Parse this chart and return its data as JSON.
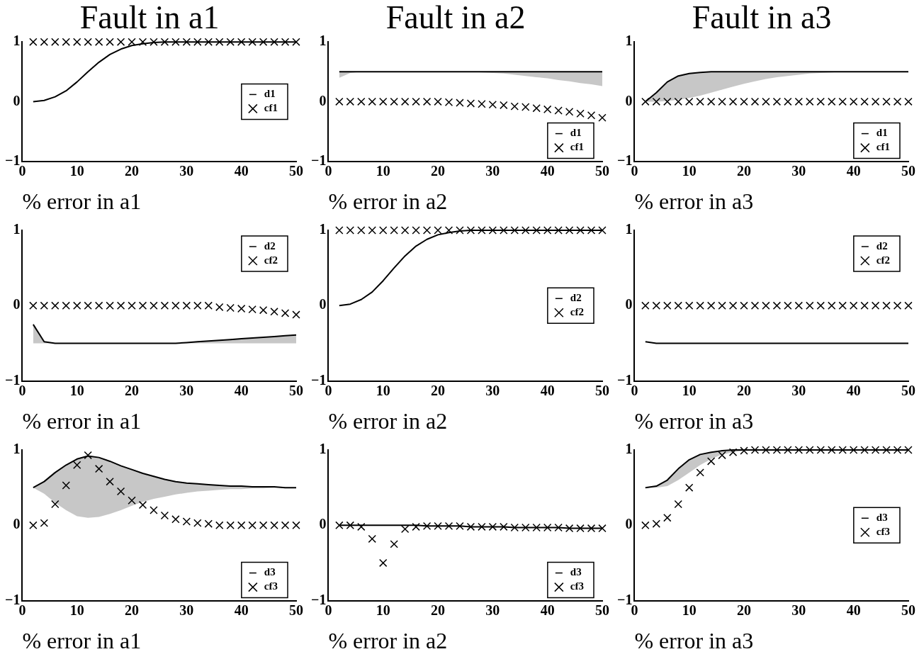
{
  "chart_data": [
    {
      "type": "line",
      "title": "Fault in a1",
      "xlabel": "% error in a1",
      "x": [
        2,
        4,
        6,
        8,
        10,
        12,
        14,
        16,
        18,
        20,
        22,
        24,
        26,
        28,
        30,
        32,
        34,
        36,
        38,
        40,
        42,
        44,
        46,
        48,
        50
      ],
      "xlim": [
        0,
        50
      ],
      "xticks": [
        0,
        10,
        20,
        30,
        40,
        50
      ],
      "ylim": [
        -1,
        1
      ],
      "yticks": [
        -1,
        0,
        1
      ],
      "legend": "right",
      "series": [
        {
          "name": "d1",
          "type": "line",
          "color": "#000000",
          "values": [
            0,
            0.02,
            0.08,
            0.18,
            0.33,
            0.5,
            0.66,
            0.79,
            0.88,
            0.94,
            0.97,
            0.99,
            1,
            1,
            1,
            1,
            1,
            1,
            1,
            1,
            1,
            1,
            1,
            1,
            1
          ]
        },
        {
          "name": "cf1",
          "type": "scatter",
          "marker": "cross",
          "color": "#000000",
          "values": [
            1,
            1,
            1,
            1,
            1,
            1,
            1,
            1,
            1,
            1,
            1,
            1,
            1,
            1,
            1,
            1,
            1,
            1,
            1,
            1,
            1,
            1,
            1,
            1,
            1
          ]
        }
      ]
    },
    {
      "type": "line",
      "title": "Fault in a2",
      "xlabel": "% error in a2",
      "x": [
        2,
        4,
        6,
        8,
        10,
        12,
        14,
        16,
        18,
        20,
        22,
        24,
        26,
        28,
        30,
        32,
        34,
        36,
        38,
        40,
        42,
        44,
        46,
        48,
        50
      ],
      "xlim": [
        0,
        50
      ],
      "xticks": [
        0,
        10,
        20,
        30,
        40,
        50
      ],
      "ylim": [
        -1,
        1
      ],
      "yticks": [
        -1,
        0,
        1
      ],
      "legend": "bottom right",
      "series": [
        {
          "name": "d1",
          "type": "line",
          "color": "#000000",
          "values": [
            0.5,
            0.5,
            0.5,
            0.5,
            0.5,
            0.5,
            0.5,
            0.5,
            0.5,
            0.5,
            0.5,
            0.5,
            0.5,
            0.5,
            0.5,
            0.5,
            0.5,
            0.5,
            0.5,
            0.5,
            0.5,
            0.5,
            0.5,
            0.5,
            0.5
          ],
          "lower": [
            0.4,
            0.48,
            0.5,
            0.5,
            0.5,
            0.5,
            0.5,
            0.5,
            0.5,
            0.5,
            0.5,
            0.5,
            0.5,
            0.49,
            0.48,
            0.47,
            0.45,
            0.43,
            0.41,
            0.39,
            0.36,
            0.34,
            0.31,
            0.29,
            0.26
          ],
          "upper": [
            0.5,
            0.5,
            0.5,
            0.5,
            0.5,
            0.5,
            0.5,
            0.5,
            0.5,
            0.5,
            0.5,
            0.5,
            0.5,
            0.5,
            0.5,
            0.5,
            0.5,
            0.5,
            0.5,
            0.5,
            0.5,
            0.5,
            0.5,
            0.5,
            0.5
          ]
        },
        {
          "name": "cf1",
          "type": "scatter",
          "marker": "cross",
          "color": "#000000",
          "values": [
            0,
            0,
            0,
            0,
            0,
            0,
            0,
            0,
            0,
            0,
            -0.01,
            -0.02,
            -0.03,
            -0.04,
            -0.05,
            -0.06,
            -0.08,
            -0.09,
            -0.11,
            -0.13,
            -0.15,
            -0.17,
            -0.2,
            -0.23,
            -0.27
          ]
        }
      ]
    },
    {
      "type": "line",
      "title": "Fault in a3",
      "xlabel": "% error in a3",
      "x": [
        2,
        4,
        6,
        8,
        10,
        12,
        14,
        16,
        18,
        20,
        22,
        24,
        26,
        28,
        30,
        32,
        34,
        36,
        38,
        40,
        42,
        44,
        46,
        48,
        50
      ],
      "xlim": [
        0,
        50
      ],
      "xticks": [
        0,
        10,
        20,
        30,
        40,
        50
      ],
      "ylim": [
        -1,
        1
      ],
      "yticks": [
        -1,
        0,
        1
      ],
      "legend": "bottom right",
      "series": [
        {
          "name": "d1",
          "type": "line",
          "color": "#000000",
          "values": [
            0,
            0.15,
            0.33,
            0.43,
            0.47,
            0.49,
            0.5,
            0.5,
            0.5,
            0.5,
            0.5,
            0.5,
            0.5,
            0.5,
            0.5,
            0.5,
            0.5,
            0.5,
            0.5,
            0.5,
            0.5,
            0.5,
            0.5,
            0.5,
            0.5
          ],
          "lower": [
            0,
            0,
            0.01,
            0.03,
            0.06,
            0.1,
            0.15,
            0.2,
            0.25,
            0.3,
            0.34,
            0.38,
            0.41,
            0.43,
            0.45,
            0.47,
            0.48,
            0.49,
            0.5,
            0.5,
            0.5,
            0.5,
            0.5,
            0.5,
            0.5
          ],
          "upper": [
            0,
            0.15,
            0.33,
            0.43,
            0.47,
            0.49,
            0.5,
            0.5,
            0.5,
            0.5,
            0.5,
            0.5,
            0.5,
            0.5,
            0.5,
            0.5,
            0.5,
            0.5,
            0.5,
            0.5,
            0.5,
            0.5,
            0.5,
            0.5,
            0.5
          ]
        },
        {
          "name": "cf1",
          "type": "scatter",
          "marker": "cross",
          "color": "#000000",
          "values": [
            0,
            0,
            0,
            0,
            0,
            0,
            0,
            0,
            0,
            0,
            0,
            0,
            0,
            0,
            0,
            0,
            0,
            0,
            0,
            0,
            0,
            0,
            0,
            0,
            0
          ]
        }
      ]
    },
    {
      "type": "line",
      "xlabel": "% error in a1",
      "x": [
        2,
        4,
        6,
        8,
        10,
        12,
        14,
        16,
        18,
        20,
        22,
        24,
        26,
        28,
        30,
        32,
        34,
        36,
        38,
        40,
        42,
        44,
        46,
        48,
        50
      ],
      "xlim": [
        0,
        50
      ],
      "xticks": [
        0,
        10,
        20,
        30,
        40,
        50
      ],
      "ylim": [
        -1,
        1
      ],
      "yticks": [
        -1,
        0,
        1
      ],
      "legend": "top right",
      "series": [
        {
          "name": "d2",
          "type": "line",
          "color": "#000000",
          "values": [
            -0.25,
            -0.48,
            -0.5,
            -0.5,
            -0.5,
            -0.5,
            -0.5,
            -0.5,
            -0.5,
            -0.5,
            -0.5,
            -0.5,
            -0.5,
            -0.5,
            -0.49,
            -0.48,
            -0.47,
            -0.46,
            -0.45,
            -0.44,
            -0.43,
            -0.42,
            -0.41,
            -0.4,
            -0.39
          ],
          "lower": [
            -0.5,
            -0.5,
            -0.5,
            -0.5,
            -0.5,
            -0.5,
            -0.5,
            -0.5,
            -0.5,
            -0.5,
            -0.5,
            -0.5,
            -0.5,
            -0.5,
            -0.5,
            -0.5,
            -0.5,
            -0.5,
            -0.5,
            -0.5,
            -0.5,
            -0.5,
            -0.5,
            -0.5,
            -0.5
          ],
          "upper": [
            -0.25,
            -0.48,
            -0.5,
            -0.5,
            -0.5,
            -0.5,
            -0.5,
            -0.5,
            -0.5,
            -0.5,
            -0.5,
            -0.5,
            -0.5,
            -0.5,
            -0.49,
            -0.48,
            -0.47,
            -0.46,
            -0.45,
            -0.44,
            -0.43,
            -0.42,
            -0.41,
            -0.4,
            -0.39
          ]
        },
        {
          "name": "cf2",
          "type": "scatter",
          "marker": "cross",
          "color": "#000000",
          "values": [
            0,
            0,
            0,
            0,
            0,
            0,
            0,
            0,
            0,
            0,
            0,
            0,
            0,
            0,
            0,
            0,
            0,
            -0.02,
            -0.03,
            -0.04,
            -0.05,
            -0.06,
            -0.08,
            -0.1,
            -0.12
          ]
        }
      ]
    },
    {
      "type": "line",
      "xlabel": "% error in a2",
      "x": [
        2,
        4,
        6,
        8,
        10,
        12,
        14,
        16,
        18,
        20,
        22,
        24,
        26,
        28,
        30,
        32,
        34,
        36,
        38,
        40,
        42,
        44,
        46,
        48,
        50
      ],
      "xlim": [
        0,
        50
      ],
      "xticks": [
        0,
        10,
        20,
        30,
        40,
        50
      ],
      "ylim": [
        -1,
        1
      ],
      "yticks": [
        -1,
        0,
        1
      ],
      "legend": "right",
      "series": [
        {
          "name": "d2",
          "type": "line",
          "color": "#000000",
          "values": [
            0,
            0.02,
            0.08,
            0.18,
            0.33,
            0.5,
            0.66,
            0.79,
            0.88,
            0.94,
            0.97,
            0.99,
            1,
            1,
            1,
            1,
            1,
            1,
            1,
            1,
            1,
            1,
            1,
            1,
            1
          ]
        },
        {
          "name": "cf2",
          "type": "scatter",
          "marker": "cross",
          "color": "#000000",
          "values": [
            1,
            1,
            1,
            1,
            1,
            1,
            1,
            1,
            1,
            1,
            1,
            1,
            1,
            1,
            1,
            1,
            1,
            1,
            1,
            1,
            1,
            1,
            1,
            1,
            1
          ]
        }
      ]
    },
    {
      "type": "line",
      "xlabel": "% error in a3",
      "x": [
        2,
        4,
        6,
        8,
        10,
        12,
        14,
        16,
        18,
        20,
        22,
        24,
        26,
        28,
        30,
        32,
        34,
        36,
        38,
        40,
        42,
        44,
        46,
        48,
        50
      ],
      "xlim": [
        0,
        50
      ],
      "xticks": [
        0,
        10,
        20,
        30,
        40,
        50
      ],
      "ylim": [
        -1,
        1
      ],
      "yticks": [
        -1,
        0,
        1
      ],
      "legend": "top right",
      "series": [
        {
          "name": "d2",
          "type": "line",
          "color": "#000000",
          "values": [
            -0.48,
            -0.5,
            -0.5,
            -0.5,
            -0.5,
            -0.5,
            -0.5,
            -0.5,
            -0.5,
            -0.5,
            -0.5,
            -0.5,
            -0.5,
            -0.5,
            -0.5,
            -0.5,
            -0.5,
            -0.5,
            -0.5,
            -0.5,
            -0.5,
            -0.5,
            -0.5,
            -0.5,
            -0.5
          ]
        },
        {
          "name": "cf2",
          "type": "scatter",
          "marker": "cross",
          "color": "#000000",
          "values": [
            0,
            0,
            0,
            0,
            0,
            0,
            0,
            0,
            0,
            0,
            0,
            0,
            0,
            0,
            0,
            0,
            0,
            0,
            0,
            0,
            0,
            0,
            0,
            0,
            0
          ]
        }
      ]
    },
    {
      "type": "line",
      "xlabel": "% error in a1",
      "x": [
        2,
        4,
        6,
        8,
        10,
        12,
        14,
        16,
        18,
        20,
        22,
        24,
        26,
        28,
        30,
        32,
        34,
        36,
        38,
        40,
        42,
        44,
        46,
        48,
        50
      ],
      "xlim": [
        0,
        50
      ],
      "xticks": [
        0,
        10,
        20,
        30,
        40,
        50
      ],
      "ylim": [
        -1,
        1
      ],
      "yticks": [
        -1,
        0,
        1
      ],
      "legend": "bottom right",
      "series": [
        {
          "name": "d3",
          "type": "line",
          "color": "#000000",
          "values": [
            0.5,
            0.58,
            0.7,
            0.8,
            0.88,
            0.92,
            0.9,
            0.85,
            0.79,
            0.74,
            0.69,
            0.65,
            0.61,
            0.58,
            0.56,
            0.55,
            0.54,
            0.53,
            0.52,
            0.52,
            0.51,
            0.51,
            0.51,
            0.5,
            0.5
          ],
          "lower": [
            0.5,
            0.42,
            0.3,
            0.2,
            0.12,
            0.1,
            0.11,
            0.15,
            0.2,
            0.26,
            0.31,
            0.35,
            0.38,
            0.41,
            0.43,
            0.45,
            0.46,
            0.47,
            0.48,
            0.48,
            0.49,
            0.49,
            0.5,
            0.5,
            0.5
          ],
          "upper": [
            0.5,
            0.58,
            0.7,
            0.8,
            0.88,
            0.92,
            0.9,
            0.85,
            0.79,
            0.74,
            0.69,
            0.65,
            0.61,
            0.58,
            0.56,
            0.55,
            0.54,
            0.53,
            0.52,
            0.52,
            0.51,
            0.51,
            0.51,
            0.5,
            0.5
          ]
        },
        {
          "name": "cf3",
          "type": "scatter",
          "marker": "cross",
          "color": "#000000",
          "values": [
            0,
            0.03,
            0.28,
            0.53,
            0.8,
            0.93,
            0.75,
            0.58,
            0.45,
            0.33,
            0.27,
            0.2,
            0.13,
            0.08,
            0.05,
            0.03,
            0.02,
            0,
            0,
            0,
            0,
            0,
            0,
            0,
            0
          ]
        }
      ]
    },
    {
      "type": "line",
      "xlabel": "% error in a2",
      "x": [
        2,
        4,
        6,
        8,
        10,
        12,
        14,
        16,
        18,
        20,
        22,
        24,
        26,
        28,
        30,
        32,
        34,
        36,
        38,
        40,
        42,
        44,
        46,
        48,
        50
      ],
      "xlim": [
        0,
        50
      ],
      "xticks": [
        0,
        10,
        20,
        30,
        40,
        50
      ],
      "ylim": [
        -1,
        1
      ],
      "yticks": [
        -1,
        0,
        1
      ],
      "legend": "bottom right",
      "series": [
        {
          "name": "d3",
          "type": "line",
          "color": "#000000",
          "values": [
            0,
            0,
            0,
            0,
            0,
            0,
            0,
            0,
            -0.01,
            -0.01,
            -0.01,
            -0.01,
            -0.02,
            -0.02,
            -0.02,
            -0.02,
            -0.03,
            -0.03,
            -0.03,
            -0.03,
            -0.03,
            -0.04,
            -0.04,
            -0.04,
            -0.04
          ]
        },
        {
          "name": "cf3",
          "type": "scatter",
          "marker": "cross",
          "color": "#000000",
          "values": [
            0,
            0,
            -0.02,
            -0.18,
            -0.5,
            -0.25,
            -0.05,
            -0.02,
            -0.01,
            -0.01,
            -0.01,
            -0.01,
            -0.02,
            -0.02,
            -0.02,
            -0.02,
            -0.03,
            -0.03,
            -0.03,
            -0.03,
            -0.03,
            -0.04,
            -0.04,
            -0.04,
            -0.04
          ]
        }
      ]
    },
    {
      "type": "line",
      "xlabel": "% error in a3",
      "x": [
        2,
        4,
        6,
        8,
        10,
        12,
        14,
        16,
        18,
        20,
        22,
        24,
        26,
        28,
        30,
        32,
        34,
        36,
        38,
        40,
        42,
        44,
        46,
        48,
        50
      ],
      "xlim": [
        0,
        50
      ],
      "xticks": [
        0,
        10,
        20,
        30,
        40,
        50
      ],
      "ylim": [
        -1,
        1
      ],
      "yticks": [
        -1,
        0,
        1
      ],
      "legend": "right",
      "series": [
        {
          "name": "d3",
          "type": "line",
          "color": "#000000",
          "values": [
            0.5,
            0.52,
            0.6,
            0.75,
            0.87,
            0.94,
            0.97,
            0.99,
            1,
            1,
            1,
            1,
            1,
            1,
            1,
            1,
            1,
            1,
            1,
            1,
            1,
            1,
            1,
            1,
            1
          ],
          "lower": [
            0.5,
            0.5,
            0.52,
            0.6,
            0.7,
            0.8,
            0.88,
            0.94,
            0.97,
            0.99,
            1,
            1,
            1,
            1,
            1,
            1,
            1,
            1,
            1,
            1,
            1,
            1,
            1,
            1,
            1
          ],
          "upper": [
            0.5,
            0.52,
            0.6,
            0.75,
            0.87,
            0.94,
            0.97,
            0.99,
            1,
            1,
            1,
            1,
            1,
            1,
            1,
            1,
            1,
            1,
            1,
            1,
            1,
            1,
            1,
            1,
            1
          ]
        },
        {
          "name": "cf3",
          "type": "scatter",
          "marker": "cross",
          "color": "#000000",
          "values": [
            0,
            0.02,
            0.1,
            0.28,
            0.5,
            0.7,
            0.85,
            0.93,
            0.97,
            0.99,
            1,
            1,
            1,
            1,
            1,
            1,
            1,
            1,
            1,
            1,
            1,
            1,
            1,
            1,
            1
          ]
        }
      ]
    }
  ]
}
